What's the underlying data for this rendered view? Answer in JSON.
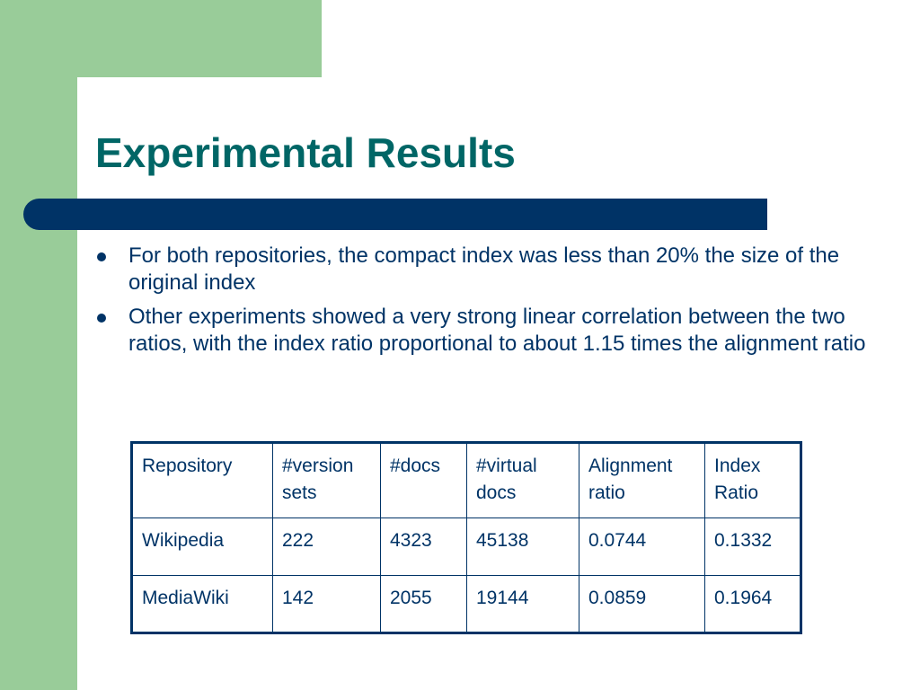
{
  "slide": {
    "title": "Experimental Results",
    "bullets": [
      "For both repositories, the compact index was less than 20% the size of the original index",
      "Other experiments showed a very strong linear correlation between the two ratios, with the index ratio proportional to about 1.15 times the alignment ratio"
    ]
  },
  "table": {
    "headers": [
      "Repository",
      "#version sets",
      "#docs",
      "#virtual docs",
      "Alignment ratio",
      "Index Ratio"
    ],
    "rows": [
      [
        "Wikipedia",
        "222",
        "4323",
        "45138",
        "0.0744",
        "0.1332"
      ],
      [
        "MediaWiki",
        "142",
        "2055",
        "19144",
        "0.0859",
        "0.1964"
      ]
    ]
  },
  "colors": {
    "accent_green": "#99cc99",
    "title_teal": "#006666",
    "navy": "#003366"
  }
}
